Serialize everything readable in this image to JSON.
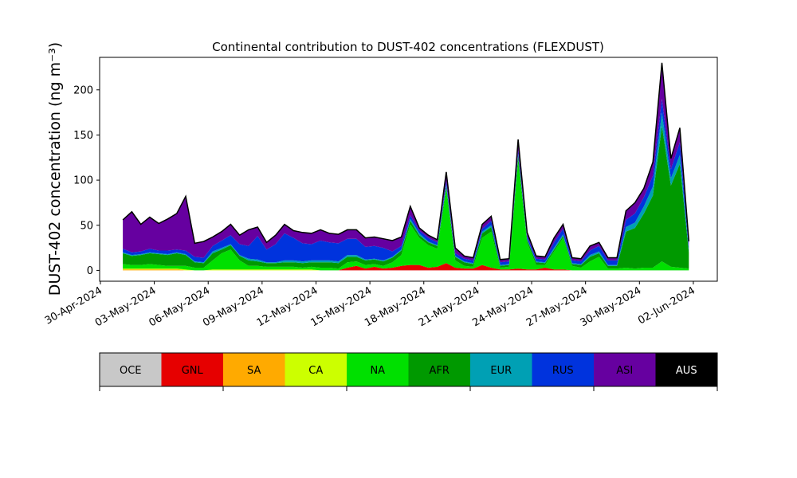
{
  "chart_data": {
    "type": "area",
    "title": "Continental contribution to DUST-402 concentrations (FLEXDUST)",
    "xlabel": "",
    "ylabel": "DUST-402 concentration (ng m⁻³)",
    "ylim": [
      -12,
      236
    ],
    "yticks": [
      0,
      50,
      100,
      150,
      200
    ],
    "xticks": [
      "30-Apr-2024",
      "03-May-2024",
      "06-May-2024",
      "09-May-2024",
      "12-May-2024",
      "15-May-2024",
      "18-May-2024",
      "21-May-2024",
      "24-May-2024",
      "27-May-2024",
      "30-May-2024",
      "02-Jun-2024"
    ],
    "xlim": [
      "2024-04-29T23:00",
      "2024-06-03T08:00"
    ],
    "stacked": true,
    "legend_position": "below",
    "x": [
      "2024-05-01T06:00",
      "2024-05-01T18:00",
      "2024-05-02T06:00",
      "2024-05-02T18:00",
      "2024-05-03T06:00",
      "2024-05-03T18:00",
      "2024-05-04T06:00",
      "2024-05-04T18:00",
      "2024-05-05T06:00",
      "2024-05-05T18:00",
      "2024-05-06T06:00",
      "2024-05-06T18:00",
      "2024-05-07T06:00",
      "2024-05-07T18:00",
      "2024-05-08T06:00",
      "2024-05-08T18:00",
      "2024-05-09T06:00",
      "2024-05-09T18:00",
      "2024-05-10T06:00",
      "2024-05-10T18:00",
      "2024-05-11T06:00",
      "2024-05-11T18:00",
      "2024-05-12T06:00",
      "2024-05-12T18:00",
      "2024-05-13T06:00",
      "2024-05-13T18:00",
      "2024-05-14T06:00",
      "2024-05-14T18:00",
      "2024-05-15T06:00",
      "2024-05-15T18:00",
      "2024-05-16T06:00",
      "2024-05-16T18:00",
      "2024-05-17T06:00",
      "2024-05-17T18:00",
      "2024-05-18T06:00",
      "2024-05-18T18:00",
      "2024-05-19T06:00",
      "2024-05-19T18:00",
      "2024-05-20T06:00",
      "2024-05-20T18:00",
      "2024-05-21T06:00",
      "2024-05-21T18:00",
      "2024-05-22T06:00",
      "2024-05-22T18:00",
      "2024-05-23T06:00",
      "2024-05-23T18:00",
      "2024-05-24T06:00",
      "2024-05-24T18:00",
      "2024-05-25T06:00",
      "2024-05-25T18:00",
      "2024-05-26T06:00",
      "2024-05-26T18:00",
      "2024-05-27T06:00",
      "2024-05-27T18:00",
      "2024-05-28T06:00",
      "2024-05-28T18:00",
      "2024-05-29T06:00",
      "2024-05-29T18:00",
      "2024-05-30T06:00",
      "2024-05-30T18:00",
      "2024-05-31T06:00",
      "2024-05-31T18:00",
      "2024-06-01T06:00",
      "2024-06-01T18:00"
    ],
    "series": [
      {
        "name": "OCE",
        "color": "#c8c8c8",
        "values": [
          0,
          0,
          0,
          0,
          0,
          0,
          0,
          0,
          0,
          0,
          0,
          0,
          0,
          0,
          0,
          0,
          0,
          0,
          0,
          0,
          0,
          0,
          0,
          0,
          0,
          0,
          0,
          0,
          0,
          0,
          0,
          0,
          0,
          0,
          0,
          0,
          0,
          0,
          0,
          0,
          0,
          0,
          0,
          0,
          0,
          0,
          0,
          0,
          0,
          0,
          0,
          0,
          0,
          0,
          0,
          0,
          0,
          0,
          0,
          0,
          0,
          0,
          0,
          0
        ]
      },
      {
        "name": "GNL",
        "color": "#e60000",
        "values": [
          0,
          0,
          0,
          0,
          0,
          0,
          0,
          0,
          0,
          0,
          0,
          0,
          0,
          0,
          0,
          0,
          0,
          0,
          0,
          0,
          0,
          0,
          0,
          0,
          0,
          3,
          5,
          2,
          4,
          2,
          3,
          5,
          6,
          6,
          3,
          4,
          8,
          3,
          2,
          2,
          6,
          3,
          1,
          1,
          2,
          1,
          1,
          3,
          1,
          1,
          0,
          0,
          0,
          0,
          0,
          0,
          0,
          0,
          0,
          0,
          0,
          0,
          0,
          0
        ]
      },
      {
        "name": "SA",
        "color": "#ffaa00",
        "values": [
          1,
          1,
          1,
          1,
          1,
          1,
          1,
          0,
          0,
          0,
          0,
          0,
          0,
          0,
          0,
          0,
          0,
          0,
          0,
          0,
          0,
          0,
          0,
          0,
          0,
          0,
          0,
          0,
          0,
          0,
          0,
          0,
          0,
          0,
          0,
          0,
          0,
          0,
          0,
          0,
          0,
          0,
          0,
          0,
          0,
          0,
          0,
          0,
          0,
          0,
          0,
          0,
          0,
          0,
          0,
          0,
          0,
          0,
          0,
          0,
          0,
          0,
          0,
          0
        ]
      },
      {
        "name": "CA",
        "color": "#ccff00",
        "values": [
          1,
          1,
          1,
          1,
          1,
          1,
          1,
          1,
          0,
          0,
          1,
          1,
          1,
          1,
          1,
          1,
          1,
          1,
          1,
          1,
          1,
          1,
          0,
          0,
          0,
          0,
          0,
          0,
          0,
          0,
          0,
          0,
          0,
          0,
          0,
          0,
          0,
          0,
          0,
          0,
          0,
          0,
          0,
          0,
          0,
          0,
          0,
          0,
          0,
          0,
          0,
          0,
          0,
          0,
          0,
          0,
          0,
          0,
          0,
          0,
          0,
          0,
          0,
          0
        ]
      },
      {
        "name": "NA",
        "color": "#00e000",
        "values": [
          5,
          4,
          4,
          5,
          4,
          3,
          3,
          4,
          3,
          3,
          10,
          18,
          22,
          10,
          4,
          4,
          3,
          3,
          3,
          3,
          2,
          3,
          3,
          3,
          2,
          6,
          5,
          4,
          3,
          3,
          6,
          12,
          45,
          30,
          25,
          20,
          82,
          8,
          3,
          2,
          30,
          40,
          2,
          3,
          120,
          30,
          5,
          3,
          20,
          35,
          5,
          3,
          10,
          15,
          2,
          2,
          3,
          2,
          3,
          3,
          10,
          4,
          3,
          2
        ]
      },
      {
        "name": "AFR",
        "color": "#009900",
        "values": [
          12,
          10,
          11,
          12,
          12,
          12,
          14,
          12,
          6,
          5,
          8,
          4,
          5,
          5,
          6,
          5,
          4,
          4,
          5,
          5,
          5,
          5,
          6,
          6,
          6,
          6,
          5,
          5,
          5,
          5,
          5,
          5,
          4,
          3,
          3,
          3,
          3,
          4,
          4,
          3,
          5,
          5,
          2,
          2,
          5,
          3,
          3,
          2,
          2,
          2,
          2,
          3,
          5,
          4,
          3,
          3,
          40,
          45,
          60,
          80,
          150,
          90,
          115,
          18
        ]
      },
      {
        "name": "EUR",
        "color": "#00a0b4",
        "values": [
          1,
          1,
          1,
          1,
          1,
          1,
          1,
          1,
          1,
          1,
          2,
          2,
          1,
          1,
          2,
          2,
          1,
          1,
          2,
          2,
          2,
          2,
          2,
          2,
          2,
          2,
          2,
          1,
          1,
          1,
          1,
          1,
          2,
          2,
          1,
          1,
          2,
          1,
          1,
          1,
          2,
          2,
          1,
          1,
          2,
          1,
          1,
          1,
          2,
          2,
          1,
          1,
          2,
          2,
          1,
          1,
          5,
          6,
          8,
          10,
          15,
          8,
          10,
          3
        ]
      },
      {
        "name": "RUS",
        "color": "#0033dd",
        "values": [
          4,
          3,
          3,
          4,
          3,
          4,
          3,
          4,
          5,
          5,
          6,
          8,
          10,
          12,
          14,
          26,
          14,
          20,
          30,
          25,
          20,
          18,
          22,
          20,
          20,
          18,
          18,
          14,
          14,
          14,
          6,
          4,
          4,
          3,
          4,
          3,
          4,
          3,
          3,
          3,
          3,
          5,
          3,
          3,
          4,
          3,
          3,
          3,
          6,
          6,
          3,
          3,
          5,
          6,
          5,
          5,
          8,
          10,
          10,
          12,
          15,
          10,
          14,
          3
        ]
      },
      {
        "name": "ASI",
        "color": "#6600a0",
        "values": [
          32,
          45,
          30,
          35,
          30,
          35,
          40,
          60,
          15,
          18,
          10,
          10,
          12,
          10,
          18,
          10,
          8,
          10,
          10,
          8,
          12,
          12,
          12,
          10,
          10,
          10,
          10,
          10,
          10,
          10,
          12,
          10,
          10,
          3,
          3,
          3,
          10,
          6,
          3,
          3,
          5,
          5,
          3,
          3,
          12,
          4,
          3,
          3,
          5,
          5,
          3,
          3,
          5,
          4,
          3,
          3,
          10,
          12,
          10,
          15,
          40,
          12,
          16,
          6
        ]
      },
      {
        "name": "AUS",
        "color": "#000000",
        "values": [
          0,
          0,
          0,
          0,
          0,
          0,
          0,
          0,
          0,
          0,
          0,
          0,
          0,
          0,
          0,
          0,
          0,
          0,
          0,
          0,
          0,
          0,
          0,
          0,
          0,
          0,
          0,
          0,
          0,
          0,
          0,
          0,
          0,
          0,
          0,
          0,
          0,
          0,
          0,
          0,
          0,
          0,
          0,
          0,
          0,
          0,
          0,
          0,
          0,
          0,
          0,
          0,
          0,
          0,
          0,
          0,
          0,
          0,
          0,
          0,
          0,
          0,
          0,
          0
        ]
      }
    ]
  }
}
